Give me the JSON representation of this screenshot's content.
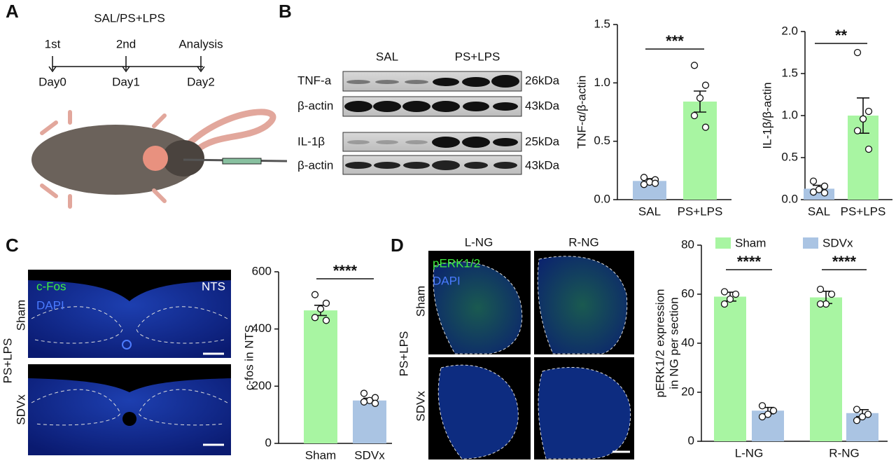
{
  "panel_a": {
    "letter": "A",
    "treatment": "SAL/PS+LPS",
    "events": [
      "1st",
      "2nd",
      "Analysis"
    ],
    "days": [
      "Day0",
      "Day1",
      "Day2"
    ]
  },
  "panel_b": {
    "letter": "B",
    "groups": [
      "SAL",
      "PS+LPS"
    ],
    "blots": [
      "TNF-a",
      "β-actin",
      "IL-1β",
      "β-actin"
    ],
    "sizes": [
      "26kDa",
      "43kDa",
      "25kDa",
      "43kDa"
    ]
  },
  "panel_c": {
    "letter": "C",
    "treatment": "PS+LPS",
    "rows": [
      "Sham",
      "SDVx"
    ],
    "stains": [
      "c-Fos",
      "DAPI"
    ],
    "region": "NTS"
  },
  "panel_d": {
    "letter": "D",
    "columns": [
      "L-NG",
      "R-NG"
    ],
    "stains": [
      "pERK1/2",
      "DAPI"
    ],
    "treatment": "PS+LPS",
    "rows": [
      "Sham",
      "SDVx"
    ]
  },
  "chart_data": [
    {
      "type": "bar",
      "ylabel": "TNF-α/β-actin",
      "categories": [
        "SAL",
        "PS+LPS"
      ],
      "values": [
        0.16,
        0.84
      ],
      "errors": [
        0.02,
        0.09
      ],
      "colors": [
        "#aac4e3",
        "#a8f5a2"
      ],
      "points": [
        [
          0.19,
          0.17,
          0.15,
          0.13,
          0.14
        ],
        [
          1.15,
          0.98,
          0.87,
          0.72,
          0.62
        ]
      ],
      "significance": "***",
      "ylim": [
        0,
        1.5
      ],
      "yticks": [
        {
          "value": 0,
          "label": "0.0"
        },
        0.5,
        {
          "value": 1,
          "label": "1.0"
        },
        1.5
      ]
    },
    {
      "type": "bar",
      "ylabel": "IL-1β/β-actin",
      "categories": [
        "SAL",
        "PS+LPS"
      ],
      "values": [
        0.13,
        1.0
      ],
      "errors": [
        0.04,
        0.21
      ],
      "colors": [
        "#aac4e3",
        "#a8f5a2"
      ],
      "points": [
        [
          0.22,
          0.16,
          0.12,
          0.09,
          0.08
        ],
        [
          1.75,
          1.05,
          0.96,
          0.82,
          0.6
        ]
      ],
      "significance": "**",
      "ylim": [
        0,
        2
      ],
      "yticks": [
        {
          "value": 0,
          "label": "0.0"
        },
        0.5,
        {
          "value": 1,
          "label": "1.0"
        },
        1.5,
        {
          "value": 2,
          "label": "2.0"
        }
      ]
    },
    {
      "type": "bar",
      "ylabel": "c-fos in NTS",
      "categories": [
        "Sham",
        "SDVx"
      ],
      "values": [
        465,
        150
      ],
      "errors": [
        18,
        8
      ],
      "colors": [
        "#a8f5a2",
        "#aac4e3"
      ],
      "points": [
        [
          520,
          490,
          470,
          440,
          430
        ],
        [
          175,
          160,
          150,
          145,
          140
        ]
      ],
      "significance": "****",
      "ylim": [
        0,
        600
      ],
      "yticks": [
        0,
        200,
        400,
        600
      ]
    },
    {
      "type": "grouped_bar",
      "ylabel": [
        "pERK1/2 expression",
        "in NG per section"
      ],
      "categories": [
        "L-NG",
        "R-NG"
      ],
      "series": [
        {
          "name": "Sham",
          "color": "#a8f5a2",
          "values": [
            59,
            58.7
          ],
          "errors": [
            1.8,
            2.5
          ],
          "points": [
            [
              61,
              60,
              58,
              56
            ],
            [
              62,
              60,
              56,
              56
            ]
          ]
        },
        {
          "name": "SDVx",
          "color": "#aac4e3",
          "values": [
            12.5,
            11.5
          ],
          "errors": [
            1.3,
            1.4
          ],
          "points": [
            [
              14.5,
              12.5,
              11,
              10
            ],
            [
              13,
              11,
              10,
              8.5
            ]
          ]
        }
      ],
      "significance": [
        "****",
        "****"
      ],
      "ylim": [
        0,
        80
      ],
      "yticks": [
        0,
        20,
        40,
        60,
        80
      ]
    }
  ]
}
